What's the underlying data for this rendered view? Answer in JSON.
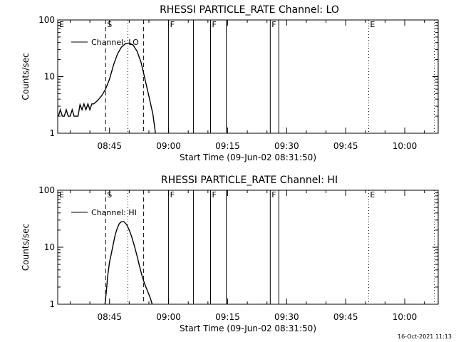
{
  "footer": {
    "date": "16-Oct-2021 11:13"
  },
  "chart_data": [
    {
      "type": "line",
      "title": "RHESSI PARTICLE_RATE Channel: LO",
      "xlabel": "Start Time (09-Jun-02 08:31:50)",
      "ylabel": "Counts/sec",
      "yscale": "log",
      "ylim": [
        1,
        100
      ],
      "x_ticks": [
        "08:45",
        "09:00",
        "09:15",
        "09:30",
        "09:45",
        "10:00"
      ],
      "y_ticks": [
        "1",
        "10",
        "100"
      ],
      "legend": {
        "label": "Channel: LO",
        "placement": "top-left"
      },
      "series": [
        {
          "name": "Channel: LO",
          "points": [
            [
              "08:32:00",
              2.0
            ],
            [
              "08:32:30",
              2.6
            ],
            [
              "08:33:00",
              2.0
            ],
            [
              "08:33:30",
              2.0
            ],
            [
              "08:34:00",
              2.6
            ],
            [
              "08:34:30",
              2.0
            ],
            [
              "08:35:00",
              2.0
            ],
            [
              "08:35:30",
              2.6
            ],
            [
              "08:36:00",
              2.0
            ],
            [
              "08:37:00",
              2.0
            ],
            [
              "08:37:30",
              3.2
            ],
            [
              "08:38:00",
              2.6
            ],
            [
              "08:38:30",
              3.3
            ],
            [
              "08:39:00",
              2.6
            ],
            [
              "08:39:30",
              3.3
            ],
            [
              "08:40:00",
              2.6
            ],
            [
              "08:40:30",
              3.3
            ],
            [
              "08:41:00",
              3.3
            ],
            [
              "08:42:00",
              3.8
            ],
            [
              "08:43:00",
              4.6
            ],
            [
              "08:44:00",
              6.0
            ],
            [
              "08:45:00",
              9.0
            ],
            [
              "08:46:00",
              16.0
            ],
            [
              "08:47:00",
              25.0
            ],
            [
              "08:48:00",
              33.0
            ],
            [
              "08:49:00",
              38.0
            ],
            [
              "08:50:00",
              39.0
            ],
            [
              "08:51:00",
              36.0
            ],
            [
              "08:52:00",
              28.0
            ],
            [
              "08:53:00",
              18.0
            ],
            [
              "08:54:00",
              9.0
            ],
            [
              "08:55:00",
              4.5
            ],
            [
              "08:56:00",
              2.2
            ],
            [
              "08:56:40",
              1.0
            ]
          ]
        }
      ],
      "markers": [
        {
          "label": "E",
          "time": "08:31:50",
          "style": "none"
        },
        {
          "label": "S",
          "time": "08:44:00",
          "style": "dashed"
        },
        {
          "label": "",
          "time": "08:49:40",
          "style": "dotted"
        },
        {
          "label": "",
          "time": "08:53:40",
          "style": "dashed"
        },
        {
          "label": "F",
          "time": "09:00:00",
          "style": "solid"
        },
        {
          "label": "",
          "time": "09:06:20",
          "style": "solid"
        },
        {
          "label": "F",
          "time": "09:10:40",
          "style": "solid"
        },
        {
          "label": "",
          "time": "09:14:40",
          "style": "solid"
        },
        {
          "label": "F",
          "time": "09:25:50",
          "style": "solid"
        },
        {
          "label": "",
          "time": "09:28:00",
          "style": "solid"
        },
        {
          "label": "E",
          "time": "09:50:50",
          "style": "dotted"
        },
        {
          "label": "",
          "time": "10:07:30",
          "style": "dotted"
        }
      ]
    },
    {
      "type": "line",
      "title": "RHESSI PARTICLE_RATE Channel: HI",
      "xlabel": "Start Time (09-Jun-02 08:31:50)",
      "ylabel": "Counts/sec",
      "yscale": "log",
      "ylim": [
        1,
        100
      ],
      "x_ticks": [
        "08:45",
        "09:00",
        "09:15",
        "09:30",
        "09:45",
        "10:00"
      ],
      "y_ticks": [
        "1",
        "10",
        "100"
      ],
      "legend": {
        "label": "Channel: HI",
        "placement": "top-left"
      },
      "series": [
        {
          "name": "Channel: HI",
          "points": [
            [
              "08:43:50",
              1.0
            ],
            [
              "08:44:10",
              1.6
            ],
            [
              "08:44:30",
              3.0
            ],
            [
              "08:45:00",
              5.5
            ],
            [
              "08:45:30",
              8.0
            ],
            [
              "08:46:00",
              12.0
            ],
            [
              "08:46:30",
              17.0
            ],
            [
              "08:47:00",
              22.0
            ],
            [
              "08:47:30",
              26.0
            ],
            [
              "08:48:00",
              28.0
            ],
            [
              "08:48:40",
              28.0
            ],
            [
              "08:49:20",
              25.0
            ],
            [
              "08:50:00",
              20.0
            ],
            [
              "08:50:40",
              15.0
            ],
            [
              "08:51:20",
              10.5
            ],
            [
              "08:52:00",
              7.0
            ],
            [
              "08:52:40",
              4.5
            ],
            [
              "08:53:20",
              3.0
            ],
            [
              "08:54:00",
              2.2
            ],
            [
              "08:54:40",
              1.7
            ],
            [
              "08:55:20",
              1.3
            ],
            [
              "08:55:50",
              1.0
            ]
          ]
        }
      ],
      "markers": [
        {
          "label": "E",
          "time": "08:31:50",
          "style": "none"
        },
        {
          "label": "S",
          "time": "08:44:00",
          "style": "dashed"
        },
        {
          "label": "",
          "time": "08:49:40",
          "style": "dotted"
        },
        {
          "label": "",
          "time": "08:53:40",
          "style": "dashed"
        },
        {
          "label": "F",
          "time": "09:00:00",
          "style": "solid"
        },
        {
          "label": "",
          "time": "09:06:20",
          "style": "solid"
        },
        {
          "label": "F",
          "time": "09:10:40",
          "style": "solid"
        },
        {
          "label": "",
          "time": "09:14:40",
          "style": "solid"
        },
        {
          "label": "F",
          "time": "09:25:50",
          "style": "solid"
        },
        {
          "label": "",
          "time": "09:28:00",
          "style": "solid"
        },
        {
          "label": "E",
          "time": "09:50:50",
          "style": "dotted"
        },
        {
          "label": "",
          "time": "10:07:30",
          "style": "dotted"
        }
      ]
    }
  ]
}
